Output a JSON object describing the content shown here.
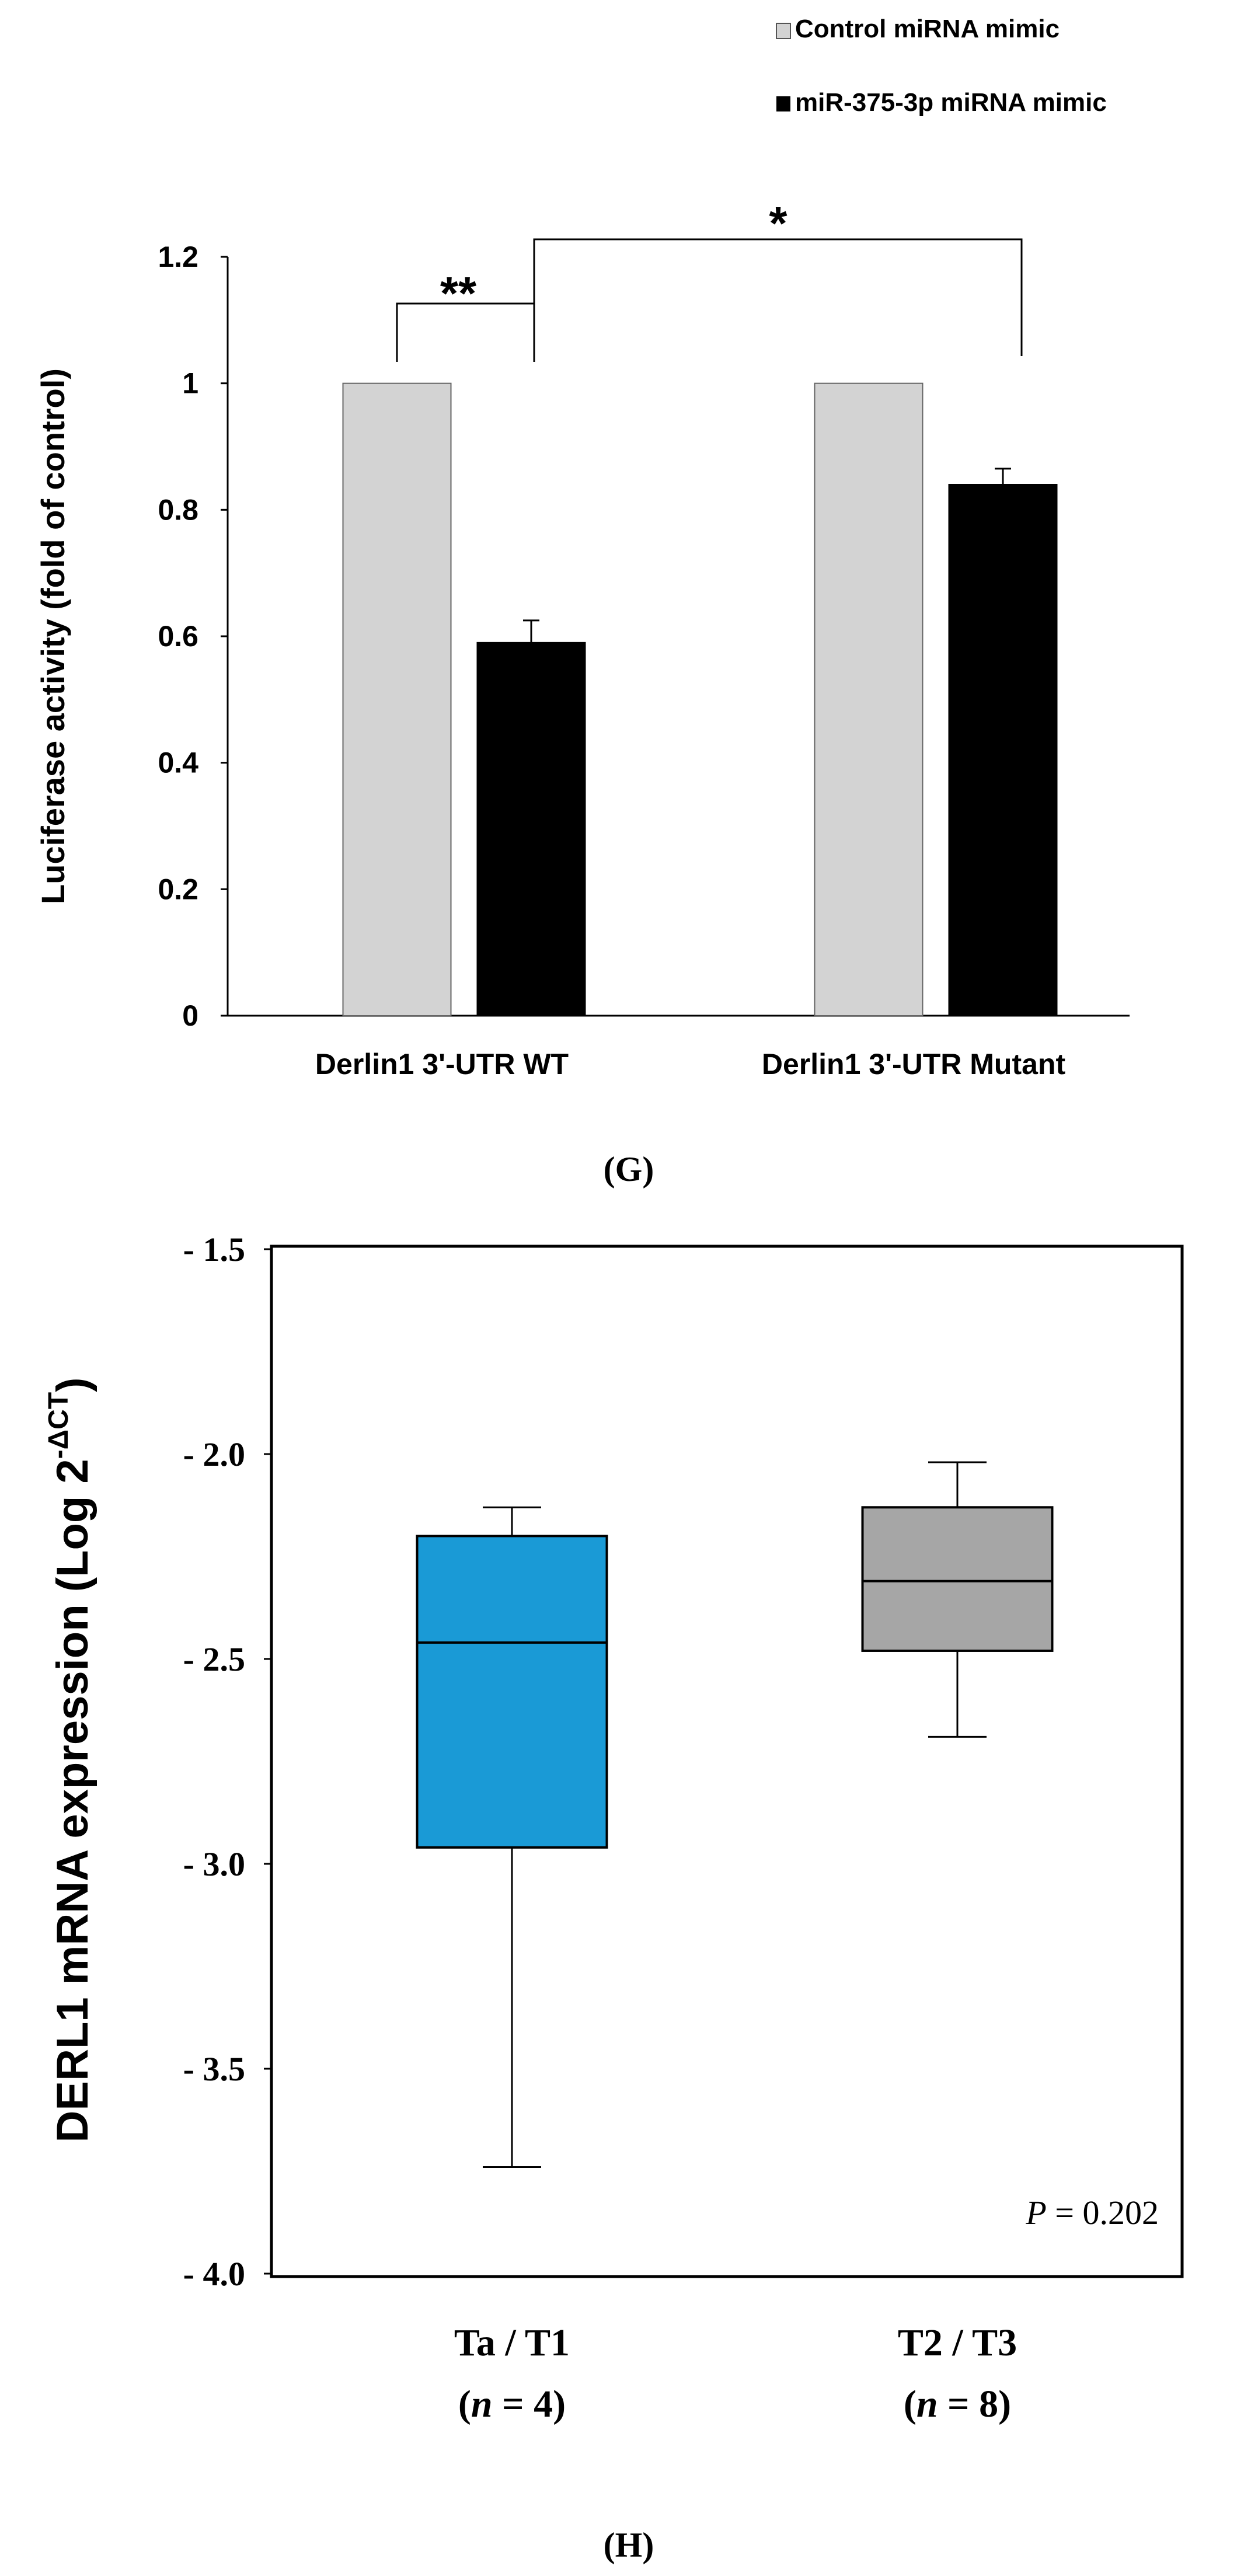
{
  "chart_data": [
    {
      "type": "bar",
      "panel": "G",
      "title": "",
      "xlabel": "",
      "ylabel": "Luciferase activity (fold of control)",
      "ylim": [
        0,
        1.2
      ],
      "yticks": [
        0,
        0.2,
        0.4,
        0.6,
        0.8,
        1,
        1.2
      ],
      "ytick_labels": [
        "0",
        "0.2",
        "0.4",
        "0.6",
        "0.8",
        "1",
        "1.2"
      ],
      "categories": [
        "Derlin1 3'-UTR WT",
        "Derlin1 3'-UTR Mutant"
      ],
      "series": [
        {
          "name": "Control miRNA mimic",
          "color": "#d3d3d3",
          "values": [
            1.0,
            1.0
          ],
          "errors": [
            0,
            0
          ]
        },
        {
          "name": "miR-375-3p miRNA mimic",
          "color": "#000000",
          "values": [
            0.59,
            0.84
          ],
          "errors": [
            0.035,
            0.025
          ]
        }
      ],
      "legend_position": "top-right",
      "significance": [
        {
          "label": "**",
          "between": [
            "Control miRNA mimic @ Derlin1 3'-UTR WT",
            "miR-375-3p miRNA mimic @ Derlin1 3'-UTR WT"
          ]
        },
        {
          "label": "*",
          "between": [
            "miR-375-3p miRNA mimic @ Derlin1 3'-UTR WT",
            "miR-375-3p miRNA mimic @ Derlin1 3'-UTR Mutant"
          ]
        }
      ],
      "panel_label": "(G)"
    },
    {
      "type": "box",
      "panel": "H",
      "title": "",
      "xlabel": "",
      "ylabel_main": "DERL1  mRNA expression (Log  2",
      "ylabel_sup": "-ΔCT",
      "ylabel_close": ")",
      "ylim": [
        -4.0,
        -1.5
      ],
      "yticks": [
        -4.0,
        -3.5,
        -3.0,
        -2.5,
        -2.0,
        -1.5
      ],
      "ytick_labels": [
        "- 4.0",
        "- 3.5",
        "- 3.0",
        "- 2.5",
        "- 2.0",
        "- 1.5"
      ],
      "groups": [
        {
          "label": "Ta / T1",
          "n_prefix": "(",
          "n_var": "n",
          "n_rest": " = 4)",
          "color": "#1a9ad6",
          "min": -3.74,
          "q1": -2.96,
          "median": -2.46,
          "q3": -2.2,
          "max": -2.13
        },
        {
          "label": "T2 / T3",
          "n_prefix": "(",
          "n_var": "n",
          "n_rest": " = 8)",
          "color": "#a6a6a6",
          "min": -2.69,
          "q1": -2.48,
          "median": -2.31,
          "q3": -2.13,
          "max": -2.02
        }
      ],
      "p_value_var": "P",
      "p_value_rest": " = 0.202",
      "panel_label": "(H)"
    }
  ]
}
